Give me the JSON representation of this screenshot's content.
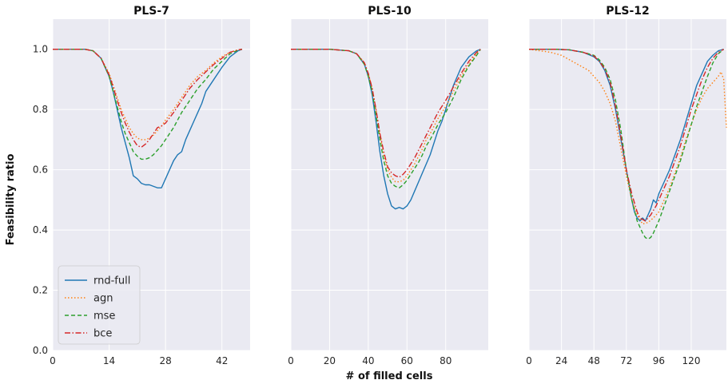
{
  "chart_data": [
    {
      "type": "line",
      "title": "PLS-7",
      "xlim": [
        0,
        49
      ],
      "ylim": [
        0.0,
        1.1
      ],
      "xticks": [
        0,
        14,
        28,
        42
      ],
      "yticks": [
        0.0,
        0.2,
        0.4,
        0.6,
        0.8,
        1.0
      ],
      "grid": true,
      "series": [
        {
          "name": "rnd-full",
          "color": "#1f77b4",
          "dash": "solid",
          "x": [
            0,
            4,
            8,
            10,
            12,
            14,
            15,
            16,
            17,
            18,
            19,
            20,
            21,
            22,
            23,
            24,
            25,
            26,
            27,
            28,
            29,
            30,
            31,
            32,
            33,
            34,
            35,
            36,
            37,
            38,
            40,
            42,
            44,
            46,
            47
          ],
          "y": [
            1.0,
            1.0,
            1.0,
            0.995,
            0.97,
            0.91,
            0.86,
            0.8,
            0.74,
            0.69,
            0.64,
            0.58,
            0.57,
            0.555,
            0.55,
            0.55,
            0.545,
            0.54,
            0.54,
            0.57,
            0.6,
            0.63,
            0.65,
            0.66,
            0.7,
            0.73,
            0.76,
            0.79,
            0.82,
            0.86,
            0.9,
            0.94,
            0.975,
            0.995,
            1.0
          ]
        },
        {
          "name": "agn",
          "color": "#ff7f0e",
          "dash": "1.5,2.5",
          "x": [
            0,
            4,
            8,
            10,
            12,
            14,
            15,
            16,
            17,
            18,
            19,
            20,
            21,
            22,
            23,
            24,
            25,
            26,
            27,
            28,
            30,
            32,
            34,
            36,
            38,
            40,
            42,
            44,
            46,
            47
          ],
          "y": [
            1.0,
            1.0,
            1.0,
            0.995,
            0.97,
            0.92,
            0.88,
            0.84,
            0.8,
            0.77,
            0.74,
            0.72,
            0.705,
            0.7,
            0.7,
            0.705,
            0.715,
            0.73,
            0.745,
            0.765,
            0.8,
            0.84,
            0.88,
            0.91,
            0.93,
            0.955,
            0.975,
            0.99,
            0.998,
            1.0
          ]
        },
        {
          "name": "mse",
          "color": "#2ca02c",
          "dash": "5,3",
          "x": [
            0,
            4,
            8,
            10,
            12,
            14,
            15,
            16,
            17,
            18,
            19,
            20,
            21,
            22,
            23,
            24,
            25,
            26,
            27,
            28,
            30,
            32,
            34,
            36,
            38,
            40,
            42,
            44,
            46,
            47
          ],
          "y": [
            1.0,
            1.0,
            1.0,
            0.995,
            0.97,
            0.91,
            0.86,
            0.81,
            0.76,
            0.72,
            0.69,
            0.66,
            0.645,
            0.635,
            0.635,
            0.64,
            0.65,
            0.665,
            0.68,
            0.7,
            0.74,
            0.79,
            0.83,
            0.87,
            0.9,
            0.935,
            0.96,
            0.985,
            0.997,
            1.0
          ]
        },
        {
          "name": "bce",
          "color": "#d62728",
          "dash": "7,2.5,1.5,2.5",
          "x": [
            0,
            4,
            8,
            10,
            12,
            14,
            15,
            16,
            17,
            18,
            19,
            20,
            21,
            22,
            23,
            24,
            25,
            26,
            27,
            28,
            30,
            32,
            34,
            36,
            38,
            40,
            42,
            44,
            46,
            47
          ],
          "y": [
            1.0,
            1.0,
            1.0,
            0.995,
            0.97,
            0.915,
            0.875,
            0.83,
            0.79,
            0.755,
            0.725,
            0.7,
            0.68,
            0.675,
            0.685,
            0.7,
            0.72,
            0.74,
            0.745,
            0.755,
            0.79,
            0.83,
            0.87,
            0.9,
            0.925,
            0.95,
            0.97,
            0.99,
            0.998,
            1.0
          ]
        }
      ]
    },
    {
      "type": "line",
      "title": "PLS-10",
      "xlim": [
        0,
        102
      ],
      "ylim": [
        0.0,
        1.1
      ],
      "xticks": [
        0,
        20,
        40,
        60,
        80
      ],
      "yticks": [
        0.0,
        0.2,
        0.4,
        0.6,
        0.8,
        1.0
      ],
      "grid": true,
      "series": [
        {
          "name": "rnd-full",
          "color": "#1f77b4",
          "dash": "solid",
          "x": [
            0,
            10,
            20,
            30,
            34,
            38,
            40,
            42,
            44,
            46,
            48,
            50,
            52,
            54,
            56,
            58,
            60,
            62,
            64,
            66,
            68,
            70,
            72,
            74,
            76,
            78,
            80,
            84,
            88,
            92,
            96,
            98
          ],
          "y": [
            1.0,
            1.0,
            1.0,
            0.995,
            0.985,
            0.95,
            0.91,
            0.85,
            0.76,
            0.66,
            0.58,
            0.52,
            0.48,
            0.47,
            0.475,
            0.47,
            0.48,
            0.5,
            0.53,
            0.56,
            0.59,
            0.62,
            0.65,
            0.69,
            0.73,
            0.76,
            0.8,
            0.88,
            0.94,
            0.975,
            0.995,
            1.0
          ]
        },
        {
          "name": "agn",
          "color": "#ff7f0e",
          "dash": "1.5,2.5",
          "x": [
            0,
            10,
            20,
            30,
            34,
            38,
            40,
            42,
            44,
            46,
            48,
            50,
            52,
            54,
            56,
            58,
            60,
            62,
            64,
            66,
            68,
            70,
            72,
            74,
            76,
            78,
            80,
            84,
            88,
            92,
            96,
            98
          ],
          "y": [
            1.0,
            1.0,
            1.0,
            0.995,
            0.985,
            0.955,
            0.92,
            0.87,
            0.8,
            0.72,
            0.65,
            0.6,
            0.575,
            0.56,
            0.56,
            0.565,
            0.58,
            0.6,
            0.62,
            0.645,
            0.67,
            0.7,
            0.72,
            0.745,
            0.77,
            0.79,
            0.81,
            0.86,
            0.91,
            0.95,
            0.985,
            1.0
          ]
        },
        {
          "name": "mse",
          "color": "#2ca02c",
          "dash": "5,3",
          "x": [
            0,
            10,
            20,
            30,
            34,
            38,
            40,
            42,
            44,
            46,
            48,
            50,
            52,
            54,
            56,
            58,
            60,
            62,
            64,
            66,
            68,
            70,
            72,
            74,
            76,
            78,
            80,
            84,
            88,
            92,
            96,
            98
          ],
          "y": [
            1.0,
            1.0,
            1.0,
            0.995,
            0.985,
            0.95,
            0.91,
            0.86,
            0.78,
            0.7,
            0.63,
            0.58,
            0.555,
            0.545,
            0.54,
            0.55,
            0.565,
            0.585,
            0.605,
            0.625,
            0.65,
            0.68,
            0.7,
            0.725,
            0.75,
            0.77,
            0.79,
            0.84,
            0.9,
            0.945,
            0.98,
            1.0
          ]
        },
        {
          "name": "bce",
          "color": "#d62728",
          "dash": "7,2.5,1.5,2.5",
          "x": [
            0,
            10,
            20,
            30,
            34,
            38,
            40,
            42,
            44,
            46,
            48,
            50,
            52,
            54,
            56,
            58,
            60,
            62,
            64,
            66,
            68,
            70,
            72,
            74,
            76,
            78,
            80,
            84,
            88,
            92,
            96,
            98
          ],
          "y": [
            1.0,
            1.0,
            1.0,
            0.995,
            0.985,
            0.955,
            0.92,
            0.87,
            0.8,
            0.72,
            0.66,
            0.61,
            0.59,
            0.58,
            0.575,
            0.585,
            0.6,
            0.62,
            0.64,
            0.665,
            0.69,
            0.715,
            0.74,
            0.765,
            0.79,
            0.81,
            0.83,
            0.875,
            0.92,
            0.96,
            0.99,
            1.0
          ]
        }
      ]
    },
    {
      "type": "line",
      "title": "PLS-12",
      "xlim": [
        0,
        146
      ],
      "ylim": [
        0.0,
        1.1
      ],
      "xticks": [
        0,
        24,
        48,
        72,
        96,
        120
      ],
      "yticks": [
        0.0,
        0.2,
        0.4,
        0.6,
        0.8,
        1.0
      ],
      "grid": true,
      "series": [
        {
          "name": "rnd-full",
          "color": "#1f77b4",
          "dash": "solid",
          "x": [
            0,
            10,
            20,
            30,
            40,
            48,
            52,
            56,
            60,
            64,
            68,
            72,
            74,
            76,
            78,
            80,
            82,
            84,
            86,
            88,
            90,
            92,
            94,
            96,
            98,
            100,
            104,
            108,
            112,
            116,
            120,
            124,
            128,
            132,
            136,
            140,
            144
          ],
          "y": [
            1.0,
            1.0,
            1.0,
            0.998,
            0.99,
            0.975,
            0.96,
            0.93,
            0.88,
            0.8,
            0.7,
            0.6,
            0.55,
            0.5,
            0.46,
            0.44,
            0.43,
            0.44,
            0.43,
            0.45,
            0.47,
            0.5,
            0.49,
            0.52,
            0.54,
            0.56,
            0.6,
            0.65,
            0.7,
            0.76,
            0.82,
            0.88,
            0.92,
            0.96,
            0.98,
            0.995,
            1.0
          ]
        },
        {
          "name": "agn",
          "color": "#ff7f0e",
          "dash": "1.5,2.5",
          "x": [
            0,
            8,
            16,
            24,
            30,
            36,
            40,
            44,
            48,
            52,
            56,
            60,
            64,
            68,
            72,
            76,
            80,
            84,
            88,
            92,
            96,
            100,
            104,
            108,
            112,
            116,
            120,
            124,
            128,
            132,
            136,
            140,
            142,
            144,
            146
          ],
          "y": [
            1.0,
            0.995,
            0.99,
            0.98,
            0.965,
            0.95,
            0.94,
            0.93,
            0.91,
            0.89,
            0.86,
            0.82,
            0.76,
            0.67,
            0.58,
            0.5,
            0.45,
            0.42,
            0.425,
            0.44,
            0.46,
            0.5,
            0.54,
            0.59,
            0.64,
            0.7,
            0.75,
            0.8,
            0.84,
            0.87,
            0.89,
            0.91,
            0.925,
            0.9,
            0.74
          ]
        },
        {
          "name": "mse",
          "color": "#2ca02c",
          "dash": "5,3",
          "x": [
            0,
            10,
            20,
            30,
            40,
            48,
            52,
            56,
            60,
            64,
            68,
            72,
            76,
            80,
            84,
            86,
            88,
            90,
            92,
            94,
            96,
            100,
            104,
            108,
            112,
            116,
            120,
            124,
            128,
            132,
            136,
            140,
            144
          ],
          "y": [
            1.0,
            1.0,
            1.0,
            0.998,
            0.99,
            0.98,
            0.965,
            0.94,
            0.9,
            0.83,
            0.73,
            0.6,
            0.5,
            0.43,
            0.39,
            0.375,
            0.37,
            0.375,
            0.39,
            0.41,
            0.43,
            0.48,
            0.53,
            0.58,
            0.63,
            0.69,
            0.75,
            0.81,
            0.86,
            0.91,
            0.955,
            0.985,
            1.0
          ]
        },
        {
          "name": "bce",
          "color": "#d62728",
          "dash": "7,2.5,1.5,2.5",
          "x": [
            0,
            10,
            20,
            30,
            40,
            48,
            52,
            56,
            60,
            64,
            68,
            72,
            76,
            80,
            82,
            84,
            86,
            88,
            90,
            92,
            94,
            96,
            100,
            104,
            108,
            112,
            116,
            120,
            124,
            128,
            132,
            136,
            140,
            144
          ],
          "y": [
            1.0,
            1.0,
            1.0,
            0.998,
            0.99,
            0.978,
            0.96,
            0.935,
            0.89,
            0.81,
            0.71,
            0.6,
            0.52,
            0.46,
            0.44,
            0.435,
            0.43,
            0.44,
            0.45,
            0.465,
            0.48,
            0.5,
            0.54,
            0.58,
            0.63,
            0.68,
            0.74,
            0.8,
            0.85,
            0.9,
            0.94,
            0.97,
            0.99,
            1.0
          ]
        }
      ]
    }
  ],
  "xlabel": "# of filled cells",
  "ylabel": "Feasibility ratio",
  "legend": {
    "placement": "lower-left",
    "entries": [
      "rnd-full",
      "agn",
      "mse",
      "bce"
    ]
  }
}
